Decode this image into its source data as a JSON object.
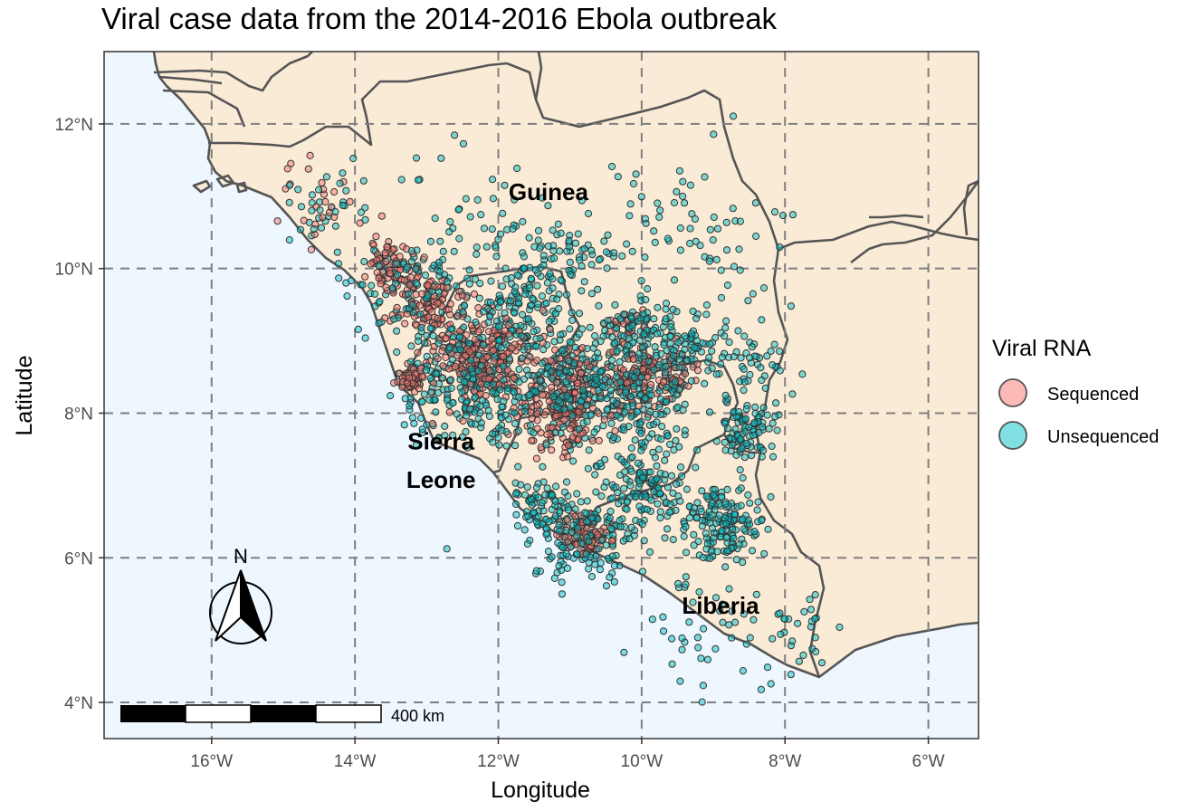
{
  "title": "Viral case data from the 2014-2016 Ebola outbreak",
  "x_axis": {
    "label": "Longitude",
    "range": [
      -17.5,
      -5.3
    ],
    "ticks": [
      {
        "value": -16,
        "label": "16°W"
      },
      {
        "value": -14,
        "label": "14°W"
      },
      {
        "value": -12,
        "label": "12°W"
      },
      {
        "value": -10,
        "label": "10°W"
      },
      {
        "value": -8,
        "label": "8°W"
      },
      {
        "value": -6,
        "label": "6°W"
      }
    ]
  },
  "y_axis": {
    "label": "Latitude",
    "range": [
      3.5,
      13.0
    ],
    "ticks": [
      {
        "value": 4,
        "label": "4°N"
      },
      {
        "value": 6,
        "label": "6°N"
      },
      {
        "value": 8,
        "label": "8°N"
      },
      {
        "value": 10,
        "label": "10°N"
      },
      {
        "value": 12,
        "label": "12°N"
      }
    ]
  },
  "countries": [
    {
      "name": "Guinea",
      "lon": -11.3,
      "lat": 10.95
    },
    {
      "name": "Sierra",
      "lon": -12.8,
      "lat": 7.5
    },
    {
      "name": "Leone",
      "lon": -12.8,
      "lat": 6.97
    },
    {
      "name": "Liberia",
      "lon": -8.9,
      "lat": 5.23
    }
  ],
  "legend": {
    "title": "Viral RNA",
    "items": [
      {
        "label": "Sequenced",
        "color": "#f8766d"
      },
      {
        "label": "Unsequenced",
        "color": "#00bfc4"
      }
    ]
  },
  "scale_bar": {
    "label": "400 km"
  },
  "north_arrow": {
    "label": "N"
  },
  "colors": {
    "sea": "#eef6fe",
    "land": "#faebd7",
    "border": "#555555",
    "sequenced": "#f8766d",
    "unsequenced": "#00bfc4"
  },
  "chart_data": {
    "type": "scatter",
    "title": "Viral case data from the 2014-2016 Ebola outbreak",
    "xlabel": "Longitude",
    "ylabel": "Latitude",
    "xlim": [
      -17.5,
      -5.3
    ],
    "ylim": [
      3.5,
      13.0
    ],
    "grid": true,
    "legend_placement": "right",
    "series": [
      {
        "name": "Sequenced",
        "color": "#f8766d",
        "clusters": [
          {
            "lon": -13.45,
            "lat": 10.05,
            "sd": 0.18,
            "n": 70
          },
          {
            "lon": -13.0,
            "lat": 9.5,
            "sd": 0.22,
            "n": 90
          },
          {
            "lon": -12.25,
            "lat": 8.75,
            "sd": 0.35,
            "n": 220
          },
          {
            "lon": -13.2,
            "lat": 8.45,
            "sd": 0.1,
            "n": 45
          },
          {
            "lon": -11.1,
            "lat": 7.95,
            "sd": 0.3,
            "n": 150
          },
          {
            "lon": -11.0,
            "lat": 8.6,
            "sd": 0.18,
            "n": 50
          },
          {
            "lon": -10.05,
            "lat": 8.5,
            "sd": 0.25,
            "n": 80
          },
          {
            "lon": -9.6,
            "lat": 8.55,
            "sd": 0.2,
            "n": 45
          },
          {
            "lon": -10.8,
            "lat": 6.3,
            "sd": 0.18,
            "n": 70
          },
          {
            "lon": -14.5,
            "lat": 10.95,
            "sd": 0.3,
            "n": 25
          },
          {
            "lon": -10.2,
            "lat": 9.2,
            "sd": 0.15,
            "n": 20
          }
        ]
      },
      {
        "name": "Unsequenced",
        "color": "#00bfc4",
        "clusters": [
          {
            "lon": -12.4,
            "lat": 8.5,
            "sd": 0.55,
            "n": 320
          },
          {
            "lon": -13.3,
            "lat": 9.8,
            "sd": 0.35,
            "n": 90
          },
          {
            "lon": -11.6,
            "lat": 9.5,
            "sd": 0.3,
            "n": 110
          },
          {
            "lon": -11.0,
            "lat": 8.45,
            "sd": 0.35,
            "n": 160
          },
          {
            "lon": -10.2,
            "lat": 8.3,
            "sd": 0.45,
            "n": 180
          },
          {
            "lon": -9.4,
            "lat": 8.9,
            "sd": 0.3,
            "n": 110
          },
          {
            "lon": -10.1,
            "lat": 9.2,
            "sd": 0.22,
            "n": 60
          },
          {
            "lon": -8.55,
            "lat": 7.75,
            "sd": 0.2,
            "n": 90
          },
          {
            "lon": -8.9,
            "lat": 6.5,
            "sd": 0.28,
            "n": 150
          },
          {
            "lon": -9.95,
            "lat": 6.95,
            "sd": 0.3,
            "n": 110
          },
          {
            "lon": -10.8,
            "lat": 6.3,
            "sd": 0.35,
            "n": 160
          },
          {
            "lon": -11.4,
            "lat": 6.75,
            "sd": 0.22,
            "n": 70
          },
          {
            "lon": -10.9,
            "lat": 10.2,
            "sd": 0.35,
            "n": 60
          },
          {
            "lon": -9.4,
            "lat": 10.6,
            "sd": 0.6,
            "n": 70
          },
          {
            "lon": -12.2,
            "lat": 10.6,
            "sd": 0.6,
            "n": 55
          },
          {
            "lon": -14.4,
            "lat": 10.8,
            "sd": 0.3,
            "n": 35
          },
          {
            "lon": -8.4,
            "lat": 8.7,
            "sd": 0.35,
            "n": 40
          },
          {
            "lon": -9.1,
            "lat": 5.2,
            "sd": 0.5,
            "n": 50
          },
          {
            "lon": -7.9,
            "lat": 5.0,
            "sd": 0.35,
            "n": 30
          },
          {
            "lon": -9.7,
            "lat": 7.6,
            "sd": 0.6,
            "n": 80
          }
        ]
      }
    ]
  }
}
